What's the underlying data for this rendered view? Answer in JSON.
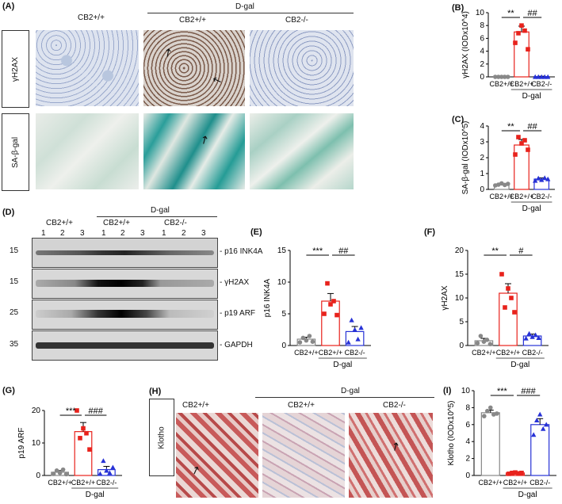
{
  "panels": {
    "A": {
      "label": "(A)",
      "col1": "CB2+/+",
      "col2": "CB2+/+",
      "col3": "CB2-/-",
      "group": "D-gal",
      "rows": [
        "γH2AX",
        "SA-β-gal"
      ]
    },
    "D": {
      "label": "(D)",
      "group": "D-gal",
      "groups": [
        "CB2+/+",
        "CB2+/+",
        "CB2-/-"
      ],
      "lanes": [
        "1",
        "2",
        "3",
        "1",
        "2",
        "3",
        "1",
        "2",
        "3"
      ],
      "mw": [
        "15",
        "15",
        "25",
        "35"
      ],
      "bands": [
        "- p16 INK4A",
        "- γH2AX",
        "- p19 ARF",
        "- GAPDH"
      ]
    },
    "H": {
      "label": "(H)",
      "group": "D-gal",
      "cols": [
        "CB2+/+",
        "CB2+/+",
        "CB2-/-"
      ],
      "row": "Klotho"
    }
  },
  "chart_data": [
    {
      "id": "B",
      "label": "(B)",
      "type": "bar",
      "ylabel": "γH2AX (IODx10^4)",
      "ylim": [
        0,
        10
      ],
      "yticks": [
        0,
        2,
        4,
        6,
        8,
        10
      ],
      "categories": [
        "CB2+/+",
        "CB2+/+",
        "CB2-/-"
      ],
      "group_label": "D-gal",
      "values": [
        0.05,
        7.0,
        0.05
      ],
      "sem": [
        0.05,
        0.9,
        0.05
      ],
      "points": [
        [
          0,
          0,
          0,
          0,
          0
        ],
        [
          5.3,
          6.8,
          8.0,
          7.2,
          4.3
        ],
        [
          0,
          0,
          0,
          0,
          0
        ]
      ],
      "sig": [
        {
          "text": "**",
          "from": 0,
          "to": 1
        },
        {
          "text": "##",
          "from": 1,
          "to": 2
        }
      ],
      "colors": [
        "#888888",
        "#e8221c",
        "#2732d6"
      ],
      "markers": [
        "circle",
        "square",
        "triangle"
      ]
    },
    {
      "id": "C",
      "label": "(C)",
      "type": "bar",
      "ylabel": "SA-β-gal (IODx10^5)",
      "ylim": [
        0,
        4
      ],
      "yticks": [
        0,
        1,
        2,
        3,
        4
      ],
      "categories": [
        "CB2+/+",
        "CB2+/+",
        "CB2-/-"
      ],
      "group_label": "D-gal",
      "values": [
        0.32,
        2.8,
        0.65
      ],
      "sem": [
        0.05,
        0.35,
        0.08
      ],
      "points": [
        [
          0.25,
          0.3,
          0.38,
          0.28,
          0.35
        ],
        [
          2.2,
          3.3,
          2.9,
          3.1,
          2.5
        ],
        [
          0.55,
          0.7,
          0.6,
          0.72,
          0.65
        ]
      ],
      "sig": [
        {
          "text": "**",
          "from": 0,
          "to": 1
        },
        {
          "text": "##",
          "from": 1,
          "to": 2
        }
      ],
      "colors": [
        "#888888",
        "#e8221c",
        "#2732d6"
      ],
      "markers": [
        "circle",
        "square",
        "triangle"
      ]
    },
    {
      "id": "E",
      "label": "(E)",
      "type": "bar",
      "ylabel": "p16 INK4A",
      "ylim": [
        0,
        15
      ],
      "yticks": [
        0,
        5,
        10,
        15
      ],
      "categories": [
        "CB2+/+",
        "CB2+/+",
        "CB2-/-"
      ],
      "group_label": "D-gal",
      "values": [
        1.0,
        7.0,
        2.2
      ],
      "sem": [
        0.3,
        1.2,
        0.8
      ],
      "points": [
        [
          0.5,
          1.2,
          0.8,
          1.5,
          0.6
        ],
        [
          5.0,
          9.8,
          6.5,
          7.0,
          4.8
        ],
        [
          0.5,
          4.0,
          2.5,
          1.0,
          2.8
        ]
      ],
      "sig": [
        {
          "text": "***",
          "from": 0,
          "to": 1
        },
        {
          "text": "##",
          "from": 1,
          "to": 2
        }
      ],
      "colors": [
        "#888888",
        "#e8221c",
        "#2732d6"
      ],
      "markers": [
        "circle",
        "square",
        "triangle"
      ]
    },
    {
      "id": "F",
      "label": "(F)",
      "type": "bar",
      "ylabel": "γH2AX",
      "ylim": [
        0,
        20
      ],
      "yticks": [
        0,
        5,
        10,
        15,
        20
      ],
      "categories": [
        "CB2+/+",
        "CB2+/+",
        "CB2-/-"
      ],
      "group_label": "D-gal",
      "values": [
        1.0,
        11.0,
        2.0
      ],
      "sem": [
        0.5,
        2.0,
        0.4
      ],
      "points": [
        [
          0.5,
          2.0,
          0.8,
          1.2,
          0.3
        ],
        [
          15.0,
          8.0,
          12.0,
          10.0,
          7.0
        ],
        [
          1.5,
          2.5,
          1.8,
          2.2,
          1.6
        ]
      ],
      "sig": [
        {
          "text": "**",
          "from": 0,
          "to": 1
        },
        {
          "text": "#",
          "from": 1,
          "to": 2
        }
      ],
      "colors": [
        "#888888",
        "#e8221c",
        "#2732d6"
      ],
      "markers": [
        "circle",
        "square",
        "triangle"
      ]
    },
    {
      "id": "G",
      "label": "(G)",
      "type": "bar",
      "ylabel": "p19 ARF",
      "ylim": [
        0,
        20
      ],
      "yticks": [
        0,
        10,
        20
      ],
      "categories": [
        "CB2+/+",
        "CB2+/+",
        "CB2-/-"
      ],
      "group_label": "D-gal",
      "values": [
        1.0,
        13.5,
        1.8
      ],
      "sem": [
        0.5,
        2.8,
        1.0
      ],
      "points": [
        [
          0.5,
          1.5,
          0.8,
          1.8,
          0.4
        ],
        [
          20.0,
          11.5,
          14.5,
          13.0,
          8.0
        ],
        [
          0.5,
          4.5,
          1.5,
          0.8,
          2.5
        ]
      ],
      "sig": [
        {
          "text": "***",
          "from": 0,
          "to": 1
        },
        {
          "text": "###",
          "from": 1,
          "to": 2
        }
      ],
      "colors": [
        "#888888",
        "#e8221c",
        "#2732d6"
      ],
      "markers": [
        "circle",
        "square",
        "triangle"
      ]
    },
    {
      "id": "I",
      "label": "(I)",
      "type": "bar",
      "ylabel": "Klotho (IODx10^5)",
      "ylim": [
        0,
        10
      ],
      "yticks": [
        0,
        2,
        4,
        6,
        8,
        10
      ],
      "categories": [
        "CB2+/+",
        "CB2+/+",
        "CB2-/-"
      ],
      "group_label": "D-gal",
      "values": [
        7.4,
        0.3,
        6.0
      ],
      "sem": [
        0.3,
        0.05,
        0.7
      ],
      "points": [
        [
          7.0,
          7.6,
          8.0,
          7.2,
          7.3
        ],
        [
          0.2,
          0.3,
          0.35,
          0.25,
          0.3
        ],
        [
          4.8,
          6.5,
          7.2,
          5.5,
          6.0
        ]
      ],
      "sig": [
        {
          "text": "***",
          "from": 0,
          "to": 1
        },
        {
          "text": "###",
          "from": 1,
          "to": 2
        }
      ],
      "colors": [
        "#888888",
        "#e8221c",
        "#2732d6"
      ],
      "markers": [
        "circle",
        "square",
        "triangle"
      ]
    }
  ]
}
